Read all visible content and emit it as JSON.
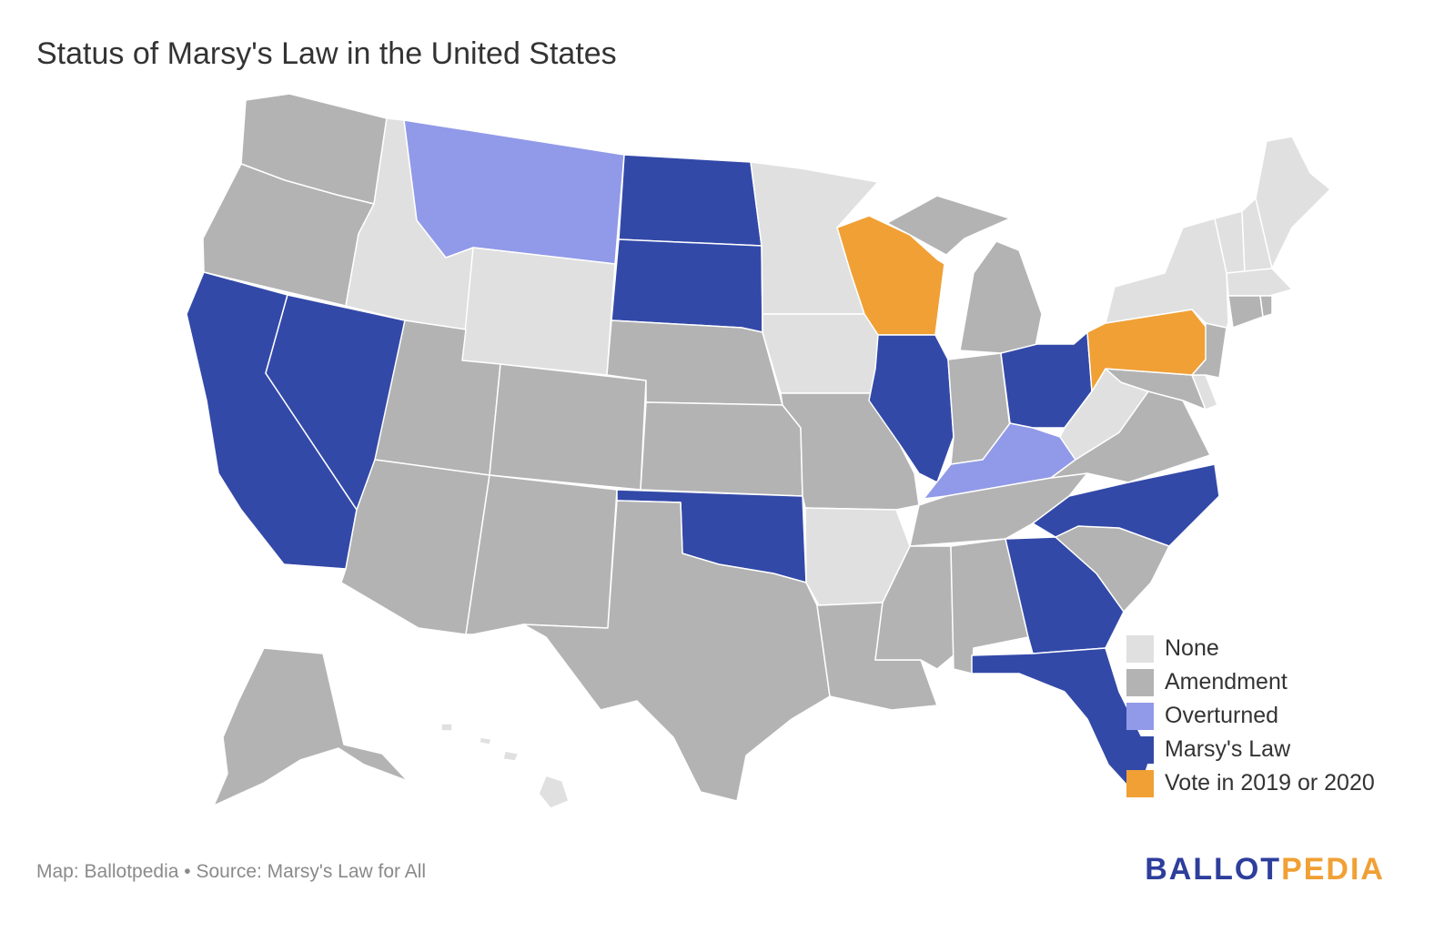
{
  "title": "Status of Marsy's Law in the United States",
  "colors": {
    "none": "#e0e0e0",
    "amendment": "#b3b3b3",
    "overturned": "#919ae8",
    "marsys_law": "#3349a8",
    "vote": "#f0a035",
    "overturned_light": "#b7bdec"
  },
  "legend": [
    {
      "label": "None",
      "color": "#e0e0e0"
    },
    {
      "label": "Amendment",
      "color": "#b3b3b3"
    },
    {
      "label": "Overturned",
      "color": "#919ae8"
    },
    {
      "label": "Marsy's Law",
      "color": "#3349a8"
    },
    {
      "label": "Vote in 2019 or 2020",
      "color": "#f0a035"
    }
  ],
  "states": {
    "none": [
      "Idaho",
      "Wyoming",
      "Minnesota",
      "Iowa",
      "Arkansas",
      "West Virginia",
      "New York",
      "Vermont",
      "New Hampshire",
      "Maine",
      "Massachusetts",
      "Delaware",
      "Hawaii"
    ],
    "amendment": [
      "Washington",
      "Oregon",
      "Utah",
      "Colorado",
      "Arizona",
      "New Mexico",
      "Texas",
      "Nebraska",
      "Kansas",
      "Missouri",
      "Louisiana",
      "Mississippi",
      "Alabama",
      "Tennessee",
      "Indiana",
      "Michigan",
      "Virginia",
      "Maryland",
      "New Jersey",
      "Connecticut",
      "Rhode Island",
      "South Carolina",
      "Alaska"
    ],
    "overturned": [
      "Montana",
      "Kentucky"
    ],
    "marsys_law": [
      "California",
      "Nevada",
      "North Dakota",
      "South Dakota",
      "Oklahoma",
      "Illinois",
      "Ohio",
      "North Carolina",
      "Georgia",
      "Florida"
    ],
    "vote": [
      "Wisconsin",
      "Pennsylvania"
    ]
  },
  "footer": {
    "credit": "Map: Ballotpedia • Source: Marsy's Law for All"
  },
  "brand": {
    "part1": "BALLOT",
    "part2": "PEDIA"
  }
}
